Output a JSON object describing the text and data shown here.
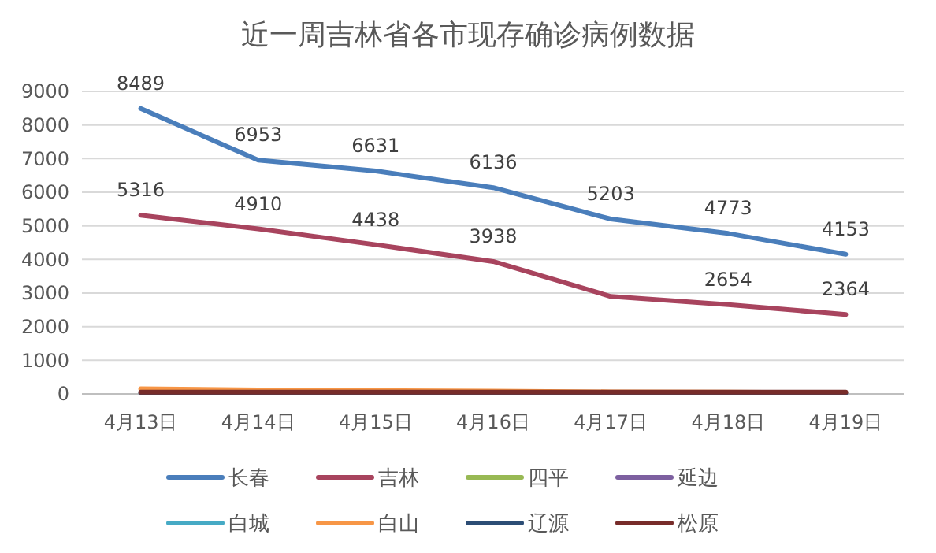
{
  "chart_data": {
    "type": "line",
    "title": "近一周吉林省各市现存确诊病例数据",
    "categories": [
      "4月13日",
      "4月14日",
      "4月15日",
      "4月16日",
      "4月17日",
      "4月18日",
      "4月19日"
    ],
    "ylim": [
      0,
      9000
    ],
    "yticks": [
      0,
      1000,
      2000,
      3000,
      4000,
      5000,
      6000,
      7000,
      8000,
      9000
    ],
    "grid": "y",
    "legend": "bottom",
    "marker": "none",
    "line_style": "solid",
    "series": [
      {
        "name": "长春",
        "color": "#4a7ebb",
        "values": [
          8489,
          6953,
          6631,
          6136,
          5203,
          4773,
          4153
        ],
        "value_labels": [
          "8489",
          "6953",
          "6631",
          "6136",
          "5203",
          "4773",
          "4153"
        ]
      },
      {
        "name": "吉林",
        "color": "#a8445e",
        "values": [
          5316,
          4910,
          4438,
          3938,
          2900,
          2654,
          2364
        ],
        "value_labels": [
          "5316",
          "4910",
          "4438",
          "3938",
          null,
          "2654",
          "2364"
        ]
      },
      {
        "name": "四平",
        "color": "#98b954",
        "values": [
          null,
          null,
          null,
          null,
          null,
          null,
          null
        ]
      },
      {
        "name": "延边",
        "color": "#7d60a0",
        "values": [
          null,
          null,
          null,
          null,
          null,
          null,
          null
        ]
      },
      {
        "name": "白城",
        "color": "#46aac5",
        "values": [
          null,
          null,
          null,
          null,
          null,
          null,
          null
        ]
      },
      {
        "name": "白山",
        "color": "#f79646",
        "values": [
          150,
          120,
          100,
          80,
          60,
          50,
          40
        ]
      },
      {
        "name": "辽源",
        "color": "#2c4d75",
        "values": [
          30,
          30,
          30,
          30,
          30,
          30,
          30
        ]
      },
      {
        "name": "松原",
        "color": "#772c2a",
        "values": [
          50,
          50,
          50,
          50,
          50,
          50,
          50
        ]
      }
    ]
  }
}
